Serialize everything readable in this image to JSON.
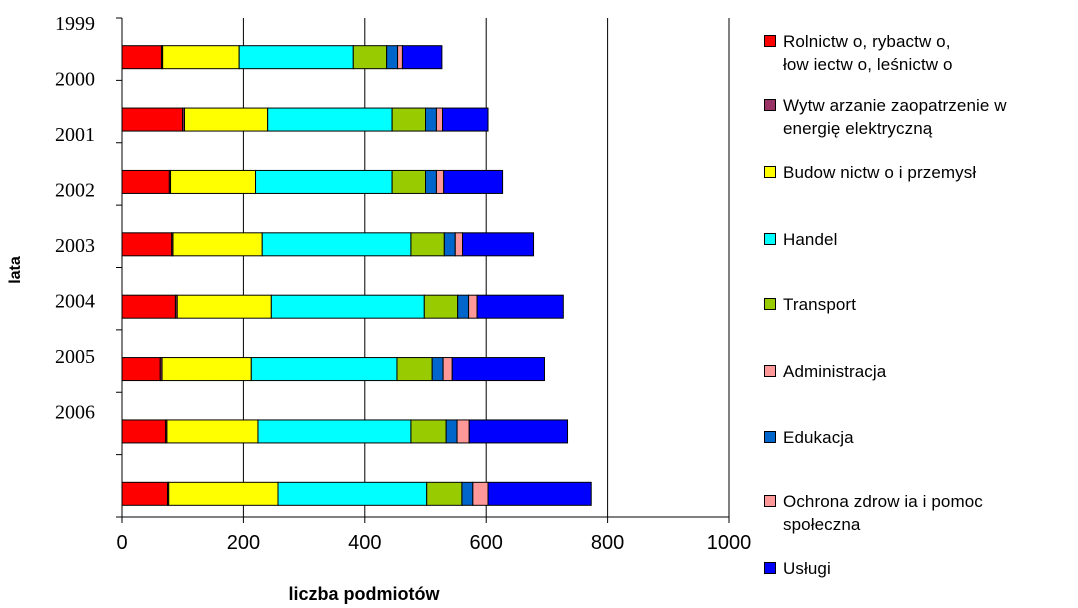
{
  "chart_data": {
    "type": "bar",
    "orientation": "horizontal",
    "stacked": true,
    "ylabel": "lata",
    "xlabel": "liczba podmiotów",
    "xlim": [
      0,
      1000
    ],
    "xticks": [
      "0",
      "200",
      "400",
      "600",
      "800",
      "1000"
    ],
    "categories": [
      "1999",
      "2000",
      "2001",
      "2002",
      "2003",
      "2004",
      "2005",
      "2006"
    ],
    "grid": true,
    "legend_position": "right",
    "series": [
      {
        "name": "Rolnictw o, rybactw o,\nłow iectw o, leśnictw o",
        "color": "#ff0000",
        "values": [
          65,
          100,
          78,
          82,
          88,
          63,
          72,
          75
        ]
      },
      {
        "name": "Wytw arzanie  zaopatrzenie w\nenergię elektryczną",
        "color": "#993366",
        "values": [
          2,
          3,
          2,
          2,
          3,
          3,
          2,
          2
        ]
      },
      {
        "name": "Budow nictw o i przemysł",
        "color": "#ffff00",
        "values": [
          126,
          137,
          140,
          147,
          155,
          147,
          150,
          180
        ]
      },
      {
        "name": "Handel",
        "color": "#00ffff",
        "values": [
          188,
          205,
          225,
          245,
          252,
          240,
          252,
          245
        ]
      },
      {
        "name": "Transport",
        "color": "#99cc00",
        "values": [
          55,
          55,
          55,
          55,
          55,
          58,
          58,
          58
        ]
      },
      {
        "name": "Administracja",
        "color": "#ff9999",
        "values": [
          0,
          0,
          0,
          0,
          0,
          0,
          0,
          0
        ]
      },
      {
        "name": "Edukacja",
        "color": "#0066cc",
        "values": [
          18,
          18,
          18,
          18,
          18,
          18,
          18,
          18
        ]
      },
      {
        "name": "Ochrona zdrow ia i pomoc\nspołeczna",
        "color": "#ff9999",
        "values": [
          8,
          10,
          12,
          12,
          14,
          15,
          20,
          25
        ]
      },
      {
        "name": "Usługi",
        "color": "#0000ff",
        "values": [
          65,
          75,
          97,
          117,
          142,
          152,
          162,
          170
        ]
      }
    ]
  }
}
